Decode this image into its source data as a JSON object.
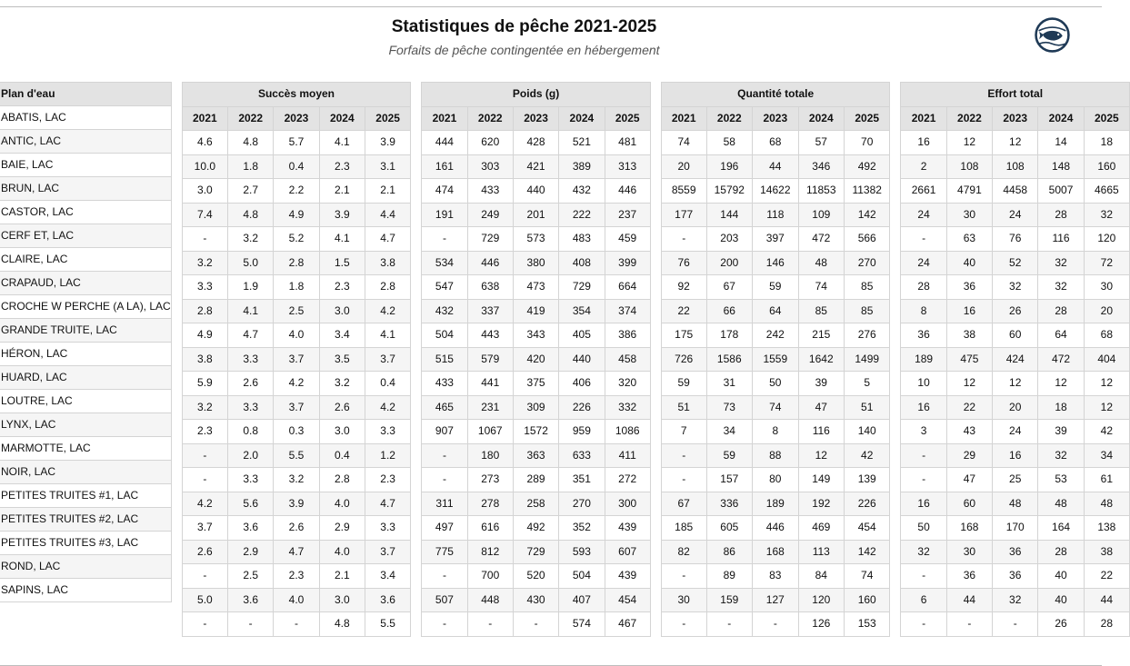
{
  "header": {
    "title": "Statistiques de pêche 2021-2025",
    "subtitle": "Forfaits de pêche contingentée en hébergement"
  },
  "logo_icon": "fish-logo-icon",
  "columns": {
    "plan_label": "Plan d'eau",
    "years": [
      "2021",
      "2022",
      "2023",
      "2024",
      "2025"
    ],
    "groups": [
      "Succès moyen",
      "Poids (g)",
      "Quantité totale",
      "Effort total"
    ]
  },
  "rows": [
    {
      "name": "ABATIS, LAC",
      "succes": [
        "4.6",
        "4.8",
        "5.7",
        "4.1",
        "3.9"
      ],
      "poids": [
        "444",
        "620",
        "428",
        "521",
        "481"
      ],
      "quantite": [
        "74",
        "58",
        "68",
        "57",
        "70"
      ],
      "effort": [
        "16",
        "12",
        "12",
        "14",
        "18"
      ]
    },
    {
      "name": "ANTIC, LAC",
      "succes": [
        "10.0",
        "1.8",
        "0.4",
        "2.3",
        "3.1"
      ],
      "poids": [
        "161",
        "303",
        "421",
        "389",
        "313"
      ],
      "quantite": [
        "20",
        "196",
        "44",
        "346",
        "492"
      ],
      "effort": [
        "2",
        "108",
        "108",
        "148",
        "160"
      ]
    },
    {
      "name": "BAIE, LAC",
      "succes": [
        "3.0",
        "2.7",
        "2.2",
        "2.1",
        "2.1"
      ],
      "poids": [
        "474",
        "433",
        "440",
        "432",
        "446"
      ],
      "quantite": [
        "8559",
        "15792",
        "14622",
        "11853",
        "11382"
      ],
      "effort": [
        "2661",
        "4791",
        "4458",
        "5007",
        "4665"
      ]
    },
    {
      "name": "BRUN, LAC",
      "succes": [
        "7.4",
        "4.8",
        "4.9",
        "3.9",
        "4.4"
      ],
      "poids": [
        "191",
        "249",
        "201",
        "222",
        "237"
      ],
      "quantite": [
        "177",
        "144",
        "118",
        "109",
        "142"
      ],
      "effort": [
        "24",
        "30",
        "24",
        "28",
        "32"
      ]
    },
    {
      "name": "CASTOR, LAC",
      "succes": [
        "-",
        "3.2",
        "5.2",
        "4.1",
        "4.7"
      ],
      "poids": [
        "-",
        "729",
        "573",
        "483",
        "459"
      ],
      "quantite": [
        "-",
        "203",
        "397",
        "472",
        "566"
      ],
      "effort": [
        "-",
        "63",
        "76",
        "116",
        "120"
      ]
    },
    {
      "name": "CERF ET, LAC",
      "succes": [
        "3.2",
        "5.0",
        "2.8",
        "1.5",
        "3.8"
      ],
      "poids": [
        "534",
        "446",
        "380",
        "408",
        "399"
      ],
      "quantite": [
        "76",
        "200",
        "146",
        "48",
        "270"
      ],
      "effort": [
        "24",
        "40",
        "52",
        "32",
        "72"
      ]
    },
    {
      "name": "CLAIRE, LAC",
      "succes": [
        "3.3",
        "1.9",
        "1.8",
        "2.3",
        "2.8"
      ],
      "poids": [
        "547",
        "638",
        "473",
        "729",
        "664"
      ],
      "quantite": [
        "92",
        "67",
        "59",
        "74",
        "85"
      ],
      "effort": [
        "28",
        "36",
        "32",
        "32",
        "30"
      ]
    },
    {
      "name": "CRAPAUD, LAC",
      "succes": [
        "2.8",
        "4.1",
        "2.5",
        "3.0",
        "4.2"
      ],
      "poids": [
        "432",
        "337",
        "419",
        "354",
        "374"
      ],
      "quantite": [
        "22",
        "66",
        "64",
        "85",
        "85"
      ],
      "effort": [
        "8",
        "16",
        "26",
        "28",
        "20"
      ]
    },
    {
      "name": "CROCHE W PERCHE (A LA), LAC",
      "succes": [
        "4.9",
        "4.7",
        "4.0",
        "3.4",
        "4.1"
      ],
      "poids": [
        "504",
        "443",
        "343",
        "405",
        "386"
      ],
      "quantite": [
        "175",
        "178",
        "242",
        "215",
        "276"
      ],
      "effort": [
        "36",
        "38",
        "60",
        "64",
        "68"
      ]
    },
    {
      "name": "GRANDE TRUITE, LAC",
      "succes": [
        "3.8",
        "3.3",
        "3.7",
        "3.5",
        "3.7"
      ],
      "poids": [
        "515",
        "579",
        "420",
        "440",
        "458"
      ],
      "quantite": [
        "726",
        "1586",
        "1559",
        "1642",
        "1499"
      ],
      "effort": [
        "189",
        "475",
        "424",
        "472",
        "404"
      ]
    },
    {
      "name": "HÉRON, LAC",
      "succes": [
        "5.9",
        "2.6",
        "4.2",
        "3.2",
        "0.4"
      ],
      "poids": [
        "433",
        "441",
        "375",
        "406",
        "320"
      ],
      "quantite": [
        "59",
        "31",
        "50",
        "39",
        "5"
      ],
      "effort": [
        "10",
        "12",
        "12",
        "12",
        "12"
      ]
    },
    {
      "name": "HUARD, LAC",
      "succes": [
        "3.2",
        "3.3",
        "3.7",
        "2.6",
        "4.2"
      ],
      "poids": [
        "465",
        "231",
        "309",
        "226",
        "332"
      ],
      "quantite": [
        "51",
        "73",
        "74",
        "47",
        "51"
      ],
      "effort": [
        "16",
        "22",
        "20",
        "18",
        "12"
      ]
    },
    {
      "name": "LOUTRE, LAC",
      "succes": [
        "2.3",
        "0.8",
        "0.3",
        "3.0",
        "3.3"
      ],
      "poids": [
        "907",
        "1067",
        "1572",
        "959",
        "1086"
      ],
      "quantite": [
        "7",
        "34",
        "8",
        "116",
        "140"
      ],
      "effort": [
        "3",
        "43",
        "24",
        "39",
        "42"
      ]
    },
    {
      "name": "LYNX, LAC",
      "succes": [
        "-",
        "2.0",
        "5.5",
        "0.4",
        "1.2"
      ],
      "poids": [
        "-",
        "180",
        "363",
        "633",
        "411"
      ],
      "quantite": [
        "-",
        "59",
        "88",
        "12",
        "42"
      ],
      "effort": [
        "-",
        "29",
        "16",
        "32",
        "34"
      ]
    },
    {
      "name": "MARMOTTE, LAC",
      "succes": [
        "-",
        "3.3",
        "3.2",
        "2.8",
        "2.3"
      ],
      "poids": [
        "-",
        "273",
        "289",
        "351",
        "272"
      ],
      "quantite": [
        "-",
        "157",
        "80",
        "149",
        "139"
      ],
      "effort": [
        "-",
        "47",
        "25",
        "53",
        "61"
      ]
    },
    {
      "name": "NOIR, LAC",
      "succes": [
        "4.2",
        "5.6",
        "3.9",
        "4.0",
        "4.7"
      ],
      "poids": [
        "311",
        "278",
        "258",
        "270",
        "300"
      ],
      "quantite": [
        "67",
        "336",
        "189",
        "192",
        "226"
      ],
      "effort": [
        "16",
        "60",
        "48",
        "48",
        "48"
      ]
    },
    {
      "name": "PETITES TRUITES #1, LAC",
      "succes": [
        "3.7",
        "3.6",
        "2.6",
        "2.9",
        "3.3"
      ],
      "poids": [
        "497",
        "616",
        "492",
        "352",
        "439"
      ],
      "quantite": [
        "185",
        "605",
        "446",
        "469",
        "454"
      ],
      "effort": [
        "50",
        "168",
        "170",
        "164",
        "138"
      ]
    },
    {
      "name": "PETITES TRUITES #2, LAC",
      "succes": [
        "2.6",
        "2.9",
        "4.7",
        "4.0",
        "3.7"
      ],
      "poids": [
        "775",
        "812",
        "729",
        "593",
        "607"
      ],
      "quantite": [
        "82",
        "86",
        "168",
        "113",
        "142"
      ],
      "effort": [
        "32",
        "30",
        "36",
        "28",
        "38"
      ]
    },
    {
      "name": "PETITES TRUITES #3, LAC",
      "succes": [
        "-",
        "2.5",
        "2.3",
        "2.1",
        "3.4"
      ],
      "poids": [
        "-",
        "700",
        "520",
        "504",
        "439"
      ],
      "quantite": [
        "-",
        "89",
        "83",
        "84",
        "74"
      ],
      "effort": [
        "-",
        "36",
        "36",
        "40",
        "22"
      ]
    },
    {
      "name": "ROND, LAC",
      "succes": [
        "5.0",
        "3.6",
        "4.0",
        "3.0",
        "3.6"
      ],
      "poids": [
        "507",
        "448",
        "430",
        "407",
        "454"
      ],
      "quantite": [
        "30",
        "159",
        "127",
        "120",
        "160"
      ],
      "effort": [
        "6",
        "44",
        "32",
        "40",
        "44"
      ]
    },
    {
      "name": "SAPINS, LAC",
      "succes": [
        "-",
        "-",
        "-",
        "4.8",
        "5.5"
      ],
      "poids": [
        "-",
        "-",
        "-",
        "574",
        "467"
      ],
      "quantite": [
        "-",
        "-",
        "-",
        "126",
        "153"
      ],
      "effort": [
        "-",
        "-",
        "-",
        "26",
        "28"
      ]
    }
  ]
}
